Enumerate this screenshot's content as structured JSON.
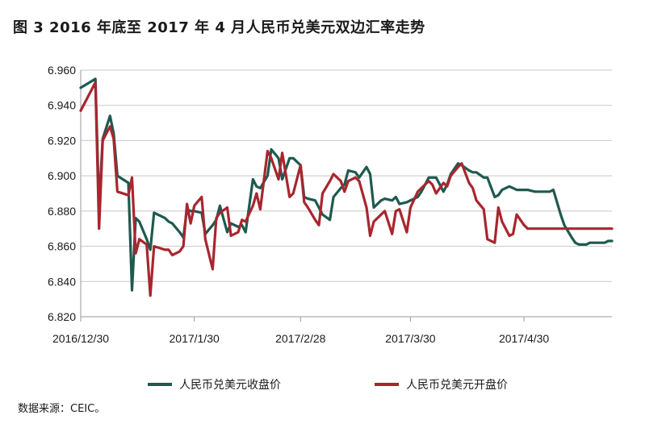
{
  "title": "图 3  2016 年底至 2017 年 4 月人民币兑美元双边汇率走势",
  "source": "数据来源：CEIC。",
  "colors": {
    "close": "#1e5a4f",
    "open": "#a8262f",
    "grid": "#c8c8c8",
    "axis": "#999999"
  },
  "chart_data": {
    "type": "line",
    "xlabel": "",
    "ylabel": "",
    "ylim": [
      6.82,
      6.96
    ],
    "yticks": [
      "6.820",
      "6.840",
      "6.860",
      "6.880",
      "6.900",
      "6.920",
      "6.940",
      "6.960"
    ],
    "xticks": [
      "2016/12/30",
      "2017/1/30",
      "2017/2/28",
      "2017/3/30",
      "2017/4/30"
    ],
    "xtick_days": [
      0,
      31,
      60,
      90,
      121
    ],
    "x": [
      0,
      4,
      5,
      6,
      8,
      9,
      10,
      13,
      14,
      15,
      16,
      18,
      19,
      20,
      23,
      24,
      25,
      27,
      28,
      29,
      30,
      31,
      33,
      34,
      36,
      37,
      38,
      40,
      41,
      43,
      44,
      45,
      47,
      48,
      49,
      51,
      52,
      54,
      55,
      57,
      58,
      60,
      61,
      62,
      64,
      65,
      66,
      68,
      69,
      71,
      72,
      73,
      75,
      76,
      78,
      79,
      80,
      82,
      83,
      85,
      86,
      87,
      89,
      90,
      92,
      93,
      95,
      96,
      97,
      99,
      100,
      101,
      103,
      104,
      106,
      107,
      108,
      110,
      111,
      113,
      114,
      115,
      117,
      118,
      119,
      121,
      122,
      124,
      125,
      127,
      128,
      129,
      131,
      132,
      134,
      135,
      136,
      138,
      139,
      140,
      142,
      143,
      144,
      145
    ],
    "series": [
      {
        "name": "人民币兑美元收盘价",
        "values": [
          6.95,
          6.955,
          6.882,
          6.921,
          6.934,
          6.924,
          6.9,
          6.896,
          6.835,
          6.876,
          6.874,
          6.864,
          6.858,
          6.879,
          6.876,
          6.874,
          6.873,
          6.868,
          6.865,
          6.881,
          6.88,
          6.88,
          6.879,
          6.867,
          6.872,
          6.875,
          6.883,
          6.868,
          6.873,
          6.871,
          6.872,
          6.868,
          6.898,
          6.894,
          6.893,
          6.9,
          6.915,
          6.91,
          6.898,
          6.91,
          6.91,
          6.906,
          6.888,
          6.887,
          6.886,
          6.882,
          6.878,
          6.875,
          6.888,
          6.893,
          6.895,
          6.903,
          6.902,
          6.899,
          6.905,
          6.901,
          6.882,
          6.886,
          6.887,
          6.886,
          6.888,
          6.884,
          6.885,
          6.886,
          6.888,
          6.891,
          6.899,
          6.899,
          6.899,
          6.891,
          6.895,
          6.901,
          6.907,
          6.906,
          6.903,
          6.902,
          6.902,
          6.899,
          6.899,
          6.888,
          6.889,
          6.892,
          6.894,
          6.893,
          6.892,
          6.892,
          6.892,
          6.891,
          6.891,
          6.891,
          6.891,
          6.892,
          6.878,
          6.872,
          6.865,
          6.862,
          6.861,
          6.861,
          6.862,
          6.862,
          6.862,
          6.862,
          6.863,
          6.863
        ]
      },
      {
        "name": "人民币兑美元开盘价",
        "values": [
          6.937,
          6.953,
          6.87,
          6.92,
          6.928,
          6.921,
          6.891,
          6.889,
          6.899,
          6.856,
          6.864,
          6.861,
          6.832,
          6.86,
          6.858,
          6.858,
          6.855,
          6.857,
          6.86,
          6.884,
          6.873,
          6.883,
          6.888,
          6.864,
          6.847,
          6.876,
          6.879,
          6.882,
          6.866,
          6.868,
          6.875,
          6.874,
          6.883,
          6.89,
          6.881,
          6.914,
          6.91,
          6.898,
          6.913,
          6.888,
          6.89,
          6.906,
          6.885,
          6.882,
          6.875,
          6.872,
          6.89,
          6.897,
          6.901,
          6.897,
          6.891,
          6.897,
          6.899,
          6.897,
          6.882,
          6.866,
          6.874,
          6.878,
          6.88,
          6.867,
          6.88,
          6.881,
          6.868,
          6.882,
          6.891,
          6.893,
          6.897,
          6.895,
          6.89,
          6.896,
          6.894,
          6.9,
          6.905,
          6.907,
          6.896,
          6.893,
          6.886,
          6.881,
          6.864,
          6.862,
          6.882,
          6.874,
          6.866,
          6.867,
          6.878,
          6.872,
          6.87,
          6.87,
          6.87,
          6.87,
          6.87,
          6.87,
          6.87,
          6.87,
          6.87,
          6.87,
          6.87,
          6.87,
          6.87,
          6.87,
          6.87,
          6.87,
          6.87,
          6.87
        ]
      }
    ],
    "legend_position": "bottom"
  }
}
